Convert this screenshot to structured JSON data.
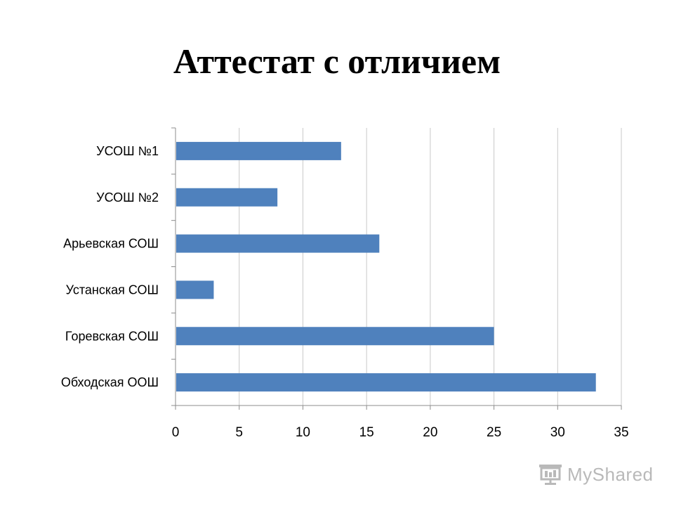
{
  "title": "Аттестат с отличием",
  "watermark": "MyShared",
  "colors": {
    "bar": "#4f81bd",
    "grid": "#c8c8c8",
    "axis": "#8c8c8c",
    "watermark": "#b9b9b9"
  },
  "chart_data": {
    "type": "bar",
    "orientation": "horizontal",
    "categories": [
      "УСОШ №1",
      "УСОШ №2",
      "Арьевская СОШ",
      "Устанская СОШ",
      "Горевская СОШ",
      "Обходская ООШ"
    ],
    "values": [
      13,
      8,
      16,
      3,
      25,
      33
    ],
    "xticks": [
      "0",
      "5",
      "10",
      "15",
      "20",
      "25",
      "30",
      "35"
    ],
    "xlim": [
      0,
      35
    ],
    "grid": true,
    "legend": "none"
  }
}
